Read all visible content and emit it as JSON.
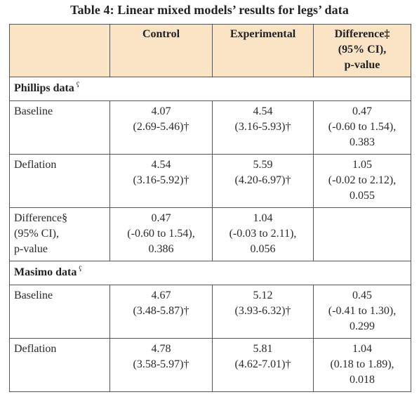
{
  "caption": "Table 4: Linear mixed models’ results for legs’ data",
  "header": {
    "col0": "",
    "col1": "Control",
    "col2": "Experimental",
    "col3_lines": [
      "Difference‡",
      "(95% CI),",
      "p-value"
    ]
  },
  "sections": [
    {
      "title": "Phillips data",
      "mark": "ʕ",
      "rows": [
        {
          "label_lines": [
            "Baseline"
          ],
          "c1": [
            "4.07",
            "(2.69-5.46)†"
          ],
          "c2": [
            "4.54",
            "(3.16-5.93)†"
          ],
          "c3": [
            "0.47",
            "(-0.60 to 1.54),",
            "0.383"
          ]
        },
        {
          "label_lines": [
            "Deflation"
          ],
          "c1": [
            "4.54",
            "(3.16-5.92)†"
          ],
          "c2": [
            "5.59",
            "(4.20-6.97)†"
          ],
          "c3": [
            "1.05",
            "(-0.02 to 2.12),",
            "0.055"
          ]
        },
        {
          "label_lines": [
            "Difference§",
            "(95% CI),",
            "p-value"
          ],
          "c1": [
            "0.47",
            "(-0.60 to 1.54),",
            "0.386"
          ],
          "c2": [
            "1.04",
            "(-0.03 to 2.11),",
            "0.056"
          ],
          "c3": []
        }
      ]
    },
    {
      "title": "Masimo data",
      "mark": "ʕ",
      "rows": [
        {
          "label_lines": [
            "Baseline"
          ],
          "c1": [
            "4.67",
            "(3.48-5.87)†"
          ],
          "c2": [
            "5.12",
            "(3.93-6.32)†"
          ],
          "c3": [
            "0.45",
            "(-0.41 to 1.30),",
            "0.299"
          ]
        },
        {
          "label_lines": [
            "Deflation"
          ],
          "c1": [
            "4.78",
            "(3.58-5.97)†"
          ],
          "c2": [
            "5.81",
            "(4.62-7.01)†"
          ],
          "c3": [
            "1.04",
            "(0.18 to 1.89),",
            "0.018"
          ]
        }
      ]
    }
  ],
  "colors": {
    "header_bg": "#fbe3c5",
    "border": "#555555"
  }
}
